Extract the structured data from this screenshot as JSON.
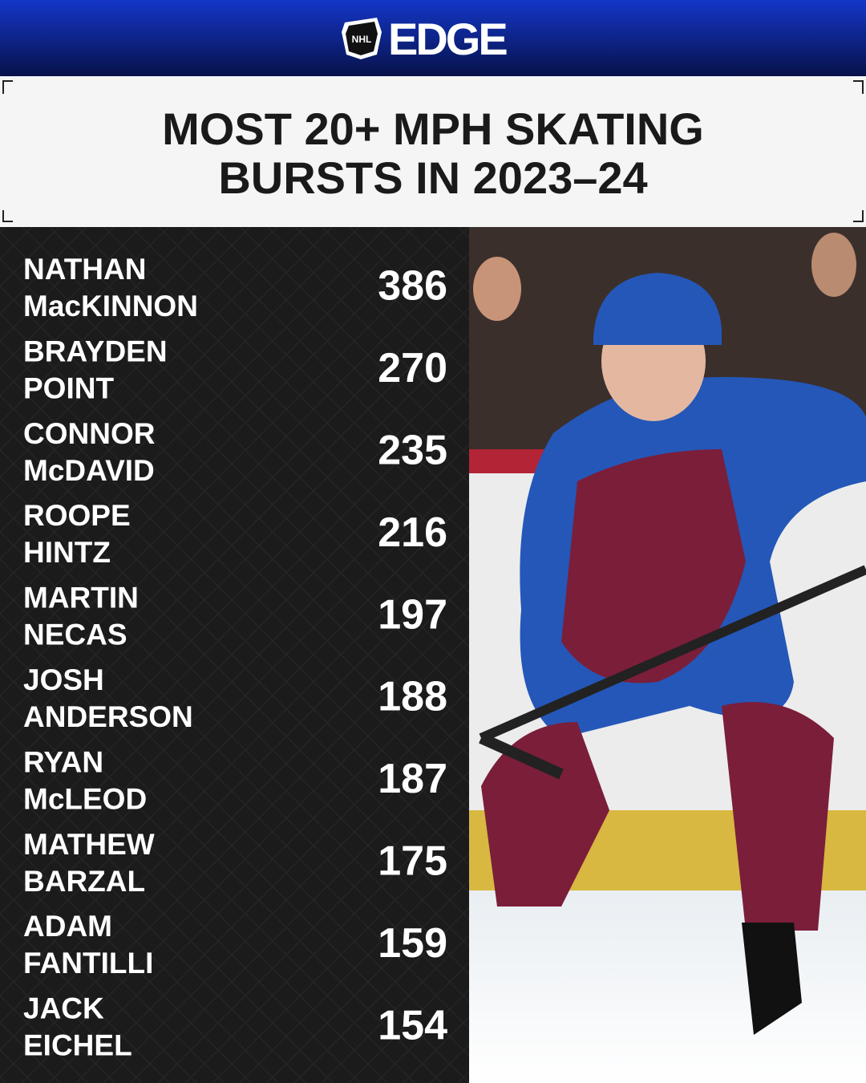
{
  "header": {
    "league": "NHL",
    "logo_text": "EDGE"
  },
  "title_lines": [
    "MOST 20+ MPH SKATING",
    "BURSTS IN 2023–24"
  ],
  "rows": [
    {
      "first": "NATHAN",
      "last": "MacKINNON",
      "value": 386
    },
    {
      "first": "BRAYDEN",
      "last": "POINT",
      "value": 270
    },
    {
      "first": "CONNOR",
      "last": "McDAVID",
      "value": 235
    },
    {
      "first": "ROOPE",
      "last": "HINTZ",
      "value": 216
    },
    {
      "first": "MARTIN",
      "last": "NECAS",
      "value": 197
    },
    {
      "first": "JOSH",
      "last": "ANDERSON",
      "value": 188
    },
    {
      "first": "RYAN",
      "last": "McLEOD",
      "value": 187
    },
    {
      "first": "MATHEW",
      "last": "BARZAL",
      "value": 175
    },
    {
      "first": "ADAM",
      "last": "FANTILLI",
      "value": 159
    },
    {
      "first": "JACK",
      "last": "EICHEL",
      "value": 154
    }
  ]
}
